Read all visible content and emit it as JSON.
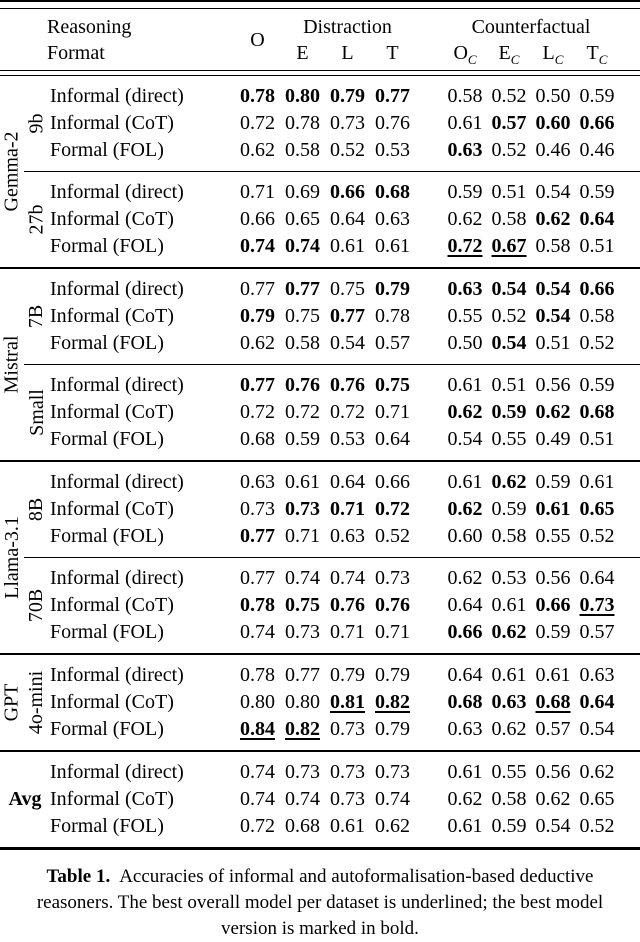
{
  "table": {
    "header": {
      "row_label_line1": "Reasoning",
      "row_label_line2": "Format",
      "original_label": "O",
      "distraction": {
        "label": "Distraction",
        "cols": [
          {
            "base": "E"
          },
          {
            "base": "L"
          },
          {
            "base": "T"
          }
        ]
      },
      "counterfactual": {
        "label": "Counterfactual",
        "cols": [
          {
            "base": "O",
            "sub": "C"
          },
          {
            "base": "E",
            "sub": "C"
          },
          {
            "base": "L",
            "sub": "C"
          },
          {
            "base": "T",
            "sub": "C"
          }
        ]
      }
    },
    "families": [
      {
        "family": "Gemma-2",
        "rotated": true,
        "subgroups": [
          {
            "label": "9b",
            "rows": [
              {
                "format": "Informal (direct)",
                "values": [
                  "0.78",
                  "0.80",
                  "0.79",
                  "0.77",
                  "0.58",
                  "0.52",
                  "0.50",
                  "0.59"
                ],
                "bold": [
                  1,
                  1,
                  1,
                  1,
                  0,
                  0,
                  0,
                  0
                ]
              },
              {
                "format": "Informal (CoT)",
                "values": [
                  "0.72",
                  "0.78",
                  "0.73",
                  "0.76",
                  "0.61",
                  "0.57",
                  "0.60",
                  "0.66"
                ],
                "bold": [
                  0,
                  0,
                  0,
                  0,
                  0,
                  1,
                  1,
                  1
                ]
              },
              {
                "format": "Formal (FOL)",
                "values": [
                  "0.62",
                  "0.58",
                  "0.52",
                  "0.53",
                  "0.63",
                  "0.52",
                  "0.46",
                  "0.46"
                ],
                "bold": [
                  0,
                  0,
                  0,
                  0,
                  1,
                  0,
                  0,
                  0
                ]
              }
            ]
          },
          {
            "label": "27b",
            "rows": [
              {
                "format": "Informal (direct)",
                "values": [
                  "0.71",
                  "0.69",
                  "0.66",
                  "0.68",
                  "0.59",
                  "0.51",
                  "0.54",
                  "0.59"
                ],
                "bold": [
                  0,
                  0,
                  1,
                  1,
                  0,
                  0,
                  0,
                  0
                ]
              },
              {
                "format": "Informal (CoT)",
                "values": [
                  "0.66",
                  "0.65",
                  "0.64",
                  "0.63",
                  "0.62",
                  "0.58",
                  "0.62",
                  "0.64"
                ],
                "bold": [
                  0,
                  0,
                  0,
                  0,
                  0,
                  0,
                  1,
                  1
                ]
              },
              {
                "format": "Formal (FOL)",
                "values": [
                  "0.74",
                  "0.74",
                  "0.61",
                  "0.61",
                  "0.72",
                  "0.67",
                  "0.58",
                  "0.51"
                ],
                "bold": [
                  1,
                  1,
                  0,
                  0,
                  1,
                  1,
                  0,
                  0
                ],
                "underline": [
                  0,
                  0,
                  0,
                  0,
                  1,
                  1,
                  0,
                  0
                ]
              }
            ]
          }
        ]
      },
      {
        "family": "Mistral",
        "rotated": true,
        "subgroups": [
          {
            "label": "7B",
            "rows": [
              {
                "format": "Informal (direct)",
                "values": [
                  "0.77",
                  "0.77",
                  "0.75",
                  "0.79",
                  "0.63",
                  "0.54",
                  "0.54",
                  "0.66"
                ],
                "bold": [
                  0,
                  1,
                  0,
                  1,
                  1,
                  1,
                  1,
                  1
                ]
              },
              {
                "format": "Informal (CoT)",
                "values": [
                  "0.79",
                  "0.75",
                  "0.77",
                  "0.78",
                  "0.55",
                  "0.52",
                  "0.54",
                  "0.58"
                ],
                "bold": [
                  1,
                  0,
                  1,
                  0,
                  0,
                  0,
                  1,
                  0
                ]
              },
              {
                "format": "Formal (FOL)",
                "values": [
                  "0.62",
                  "0.58",
                  "0.54",
                  "0.57",
                  "0.50",
                  "0.54",
                  "0.51",
                  "0.52"
                ],
                "bold": [
                  0,
                  0,
                  0,
                  0,
                  0,
                  1,
                  0,
                  0
                ]
              }
            ]
          },
          {
            "label": "Small",
            "rows": [
              {
                "format": "Informal (direct)",
                "values": [
                  "0.77",
                  "0.76",
                  "0.76",
                  "0.75",
                  "0.61",
                  "0.51",
                  "0.56",
                  "0.59"
                ],
                "bold": [
                  1,
                  1,
                  1,
                  1,
                  0,
                  0,
                  0,
                  0
                ]
              },
              {
                "format": "Informal (CoT)",
                "values": [
                  "0.72",
                  "0.72",
                  "0.72",
                  "0.71",
                  "0.62",
                  "0.59",
                  "0.62",
                  "0.68"
                ],
                "bold": [
                  0,
                  0,
                  0,
                  0,
                  1,
                  1,
                  1,
                  1
                ]
              },
              {
                "format": "Formal (FOL)",
                "values": [
                  "0.68",
                  "0.59",
                  "0.53",
                  "0.64",
                  "0.54",
                  "0.55",
                  "0.49",
                  "0.51"
                ],
                "bold": [
                  0,
                  0,
                  0,
                  0,
                  0,
                  0,
                  0,
                  0
                ]
              }
            ]
          }
        ]
      },
      {
        "family": "Llama-3.1",
        "rotated": true,
        "subgroups": [
          {
            "label": "8B",
            "rows": [
              {
                "format": "Informal (direct)",
                "values": [
                  "0.63",
                  "0.61",
                  "0.64",
                  "0.66",
                  "0.61",
                  "0.62",
                  "0.59",
                  "0.61"
                ],
                "bold": [
                  0,
                  0,
                  0,
                  0,
                  0,
                  1,
                  0,
                  0
                ]
              },
              {
                "format": "Informal (CoT)",
                "values": [
                  "0.73",
                  "0.73",
                  "0.71",
                  "0.72",
                  "0.62",
                  "0.59",
                  "0.61",
                  "0.65"
                ],
                "bold": [
                  0,
                  1,
                  1,
                  1,
                  1,
                  0,
                  1,
                  1
                ]
              },
              {
                "format": "Formal (FOL)",
                "values": [
                  "0.77",
                  "0.71",
                  "0.63",
                  "0.52",
                  "0.60",
                  "0.58",
                  "0.55",
                  "0.52"
                ],
                "bold": [
                  1,
                  0,
                  0,
                  0,
                  0,
                  0,
                  0,
                  0
                ]
              }
            ]
          },
          {
            "label": "70B",
            "rows": [
              {
                "format": "Informal (direct)",
                "values": [
                  "0.77",
                  "0.74",
                  "0.74",
                  "0.73",
                  "0.62",
                  "0.53",
                  "0.56",
                  "0.64"
                ],
                "bold": [
                  0,
                  0,
                  0,
                  0,
                  0,
                  0,
                  0,
                  0
                ]
              },
              {
                "format": "Informal (CoT)",
                "values": [
                  "0.78",
                  "0.75",
                  "0.76",
                  "0.76",
                  "0.64",
                  "0.61",
                  "0.66",
                  "0.73"
                ],
                "bold": [
                  1,
                  1,
                  1,
                  1,
                  0,
                  0,
                  1,
                  1
                ],
                "underline": [
                  0,
                  0,
                  0,
                  0,
                  0,
                  0,
                  0,
                  1
                ]
              },
              {
                "format": "Formal (FOL)",
                "values": [
                  "0.74",
                  "0.73",
                  "0.71",
                  "0.71",
                  "0.66",
                  "0.62",
                  "0.59",
                  "0.57"
                ],
                "bold": [
                  0,
                  0,
                  0,
                  0,
                  1,
                  1,
                  0,
                  0
                ]
              }
            ]
          }
        ]
      },
      {
        "family": "GPT",
        "rotated": true,
        "subgroups": [
          {
            "label": "4o-mini",
            "rows": [
              {
                "format": "Informal (direct)",
                "values": [
                  "0.78",
                  "0.77",
                  "0.79",
                  "0.79",
                  "0.64",
                  "0.61",
                  "0.61",
                  "0.63"
                ],
                "bold": [
                  0,
                  0,
                  0,
                  0,
                  0,
                  0,
                  0,
                  0
                ]
              },
              {
                "format": "Informal (CoT)",
                "values": [
                  "0.80",
                  "0.80",
                  "0.81",
                  "0.82",
                  "0.68",
                  "0.63",
                  "0.68",
                  "0.64"
                ],
                "bold": [
                  0,
                  0,
                  1,
                  1,
                  1,
                  1,
                  1,
                  1
                ],
                "underline": [
                  0,
                  0,
                  1,
                  1,
                  0,
                  0,
                  1,
                  0
                ]
              },
              {
                "format": "Formal (FOL)",
                "values": [
                  "0.84",
                  "0.82",
                  "0.73",
                  "0.79",
                  "0.63",
                  "0.62",
                  "0.57",
                  "0.54"
                ],
                "bold": [
                  1,
                  1,
                  0,
                  0,
                  0,
                  0,
                  0,
                  0
                ],
                "underline": [
                  1,
                  1,
                  0,
                  0,
                  0,
                  0,
                  0,
                  0
                ]
              }
            ]
          }
        ]
      },
      {
        "family": "Avg",
        "rotated": false,
        "subgroups": [
          {
            "label": "",
            "rows": [
              {
                "format": "Informal (direct)",
                "values": [
                  "0.74",
                  "0.73",
                  "0.73",
                  "0.73",
                  "0.61",
                  "0.55",
                  "0.56",
                  "0.62"
                ],
                "bold": [
                  0,
                  0,
                  0,
                  0,
                  0,
                  0,
                  0,
                  0
                ]
              },
              {
                "format": "Informal (CoT)",
                "values": [
                  "0.74",
                  "0.74",
                  "0.73",
                  "0.74",
                  "0.62",
                  "0.58",
                  "0.62",
                  "0.65"
                ],
                "bold": [
                  0,
                  0,
                  0,
                  0,
                  0,
                  0,
                  0,
                  0
                ]
              },
              {
                "format": "Formal (FOL)",
                "values": [
                  "0.72",
                  "0.68",
                  "0.61",
                  "0.62",
                  "0.61",
                  "0.59",
                  "0.54",
                  "0.52"
                ],
                "bold": [
                  0,
                  0,
                  0,
                  0,
                  0,
                  0,
                  0,
                  0
                ]
              }
            ]
          }
        ]
      }
    ]
  },
  "caption": {
    "label": "Table 1.",
    "text": "Accuracies of informal and autoformalisation-based deductive reasoners. The best overall model per dataset is underlined; the best model version is marked in bold."
  }
}
